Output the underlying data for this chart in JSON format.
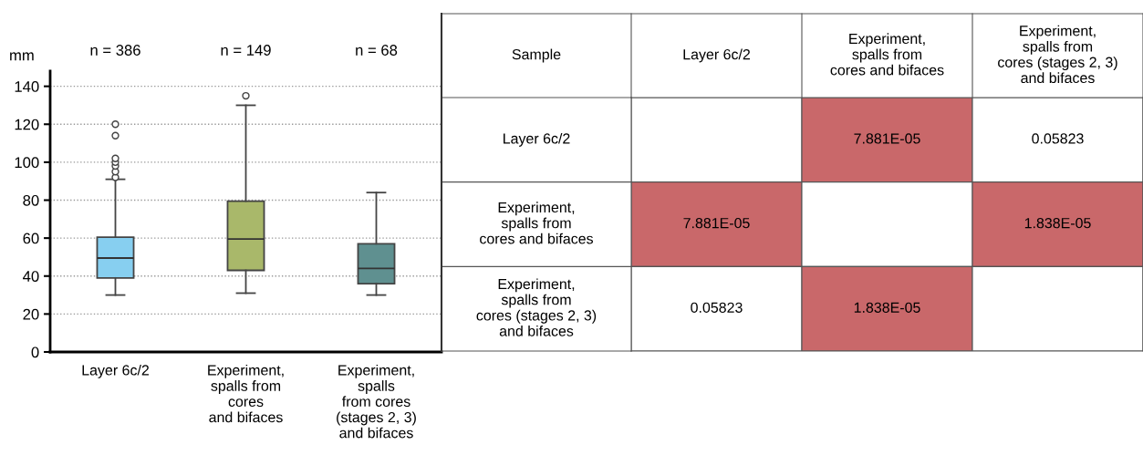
{
  "chart_data": [
    {
      "type": "box",
      "ylabel": "mm",
      "categories": [
        "Layer 6c/2",
        "Experiment,\nspalls from\ncores\nand bifaces",
        "Experiment,\nspalls\nfrom cores\n(stages 2, 3)\nand bifaces"
      ],
      "colors": [
        "#87cff0",
        "#a9b86a",
        "#5f9090"
      ],
      "boxes": [
        {
          "low": 30,
          "q1": 39,
          "median": 49.5,
          "q3": 60.5,
          "high": 91,
          "outliers": [
            92,
            95,
            98,
            100,
            102,
            114,
            120
          ]
        },
        {
          "low": 31,
          "q1": 43,
          "median": 59.5,
          "q3": 79.5,
          "high": 130,
          "outliers": [
            135
          ]
        },
        {
          "low": 30,
          "q1": 36,
          "median": 44,
          "q3": 57,
          "high": 84
        }
      ],
      "annotations": [
        "n = 386",
        "n = 149",
        "n = 68"
      ],
      "ylim": [
        0,
        148
      ],
      "yticks": [
        0,
        20,
        40,
        60,
        80,
        100,
        120,
        140
      ],
      "grid": "y"
    },
    {
      "type": "heatmap",
      "ylabel": "Sample",
      "categories": [
        "Layer 6c/2",
        "Experiment,\nspalls from\ncores and bifaces",
        "Experiment,\nspalls from\ncores (stages 2, 3)\nand bifaces"
      ],
      "y_categories": [
        "Layer 6c/2",
        "Experiment,\nspalls from\ncores and bifaces",
        "Experiment,\nspalls from\ncores (stages 2, 3)\nand bifaces"
      ],
      "cells": [
        [
          null,
          7.881e-05,
          0.05823
        ],
        [
          7.881e-05,
          null,
          1.838e-05
        ],
        [
          0.05823,
          1.838e-05,
          null
        ]
      ],
      "cell_labels": [
        [
          null,
          "7.881E-05",
          "0.05823"
        ],
        [
          "7.881E-05",
          null,
          "1.838E-05"
        ],
        [
          "0.05823",
          "1.838E-05",
          null
        ]
      ],
      "colors": [
        [
          null,
          "#c9686a",
          null
        ],
        [
          "#c9686a",
          null,
          "#c9686a"
        ],
        [
          null,
          "#c9686a",
          null
        ]
      ]
    }
  ]
}
